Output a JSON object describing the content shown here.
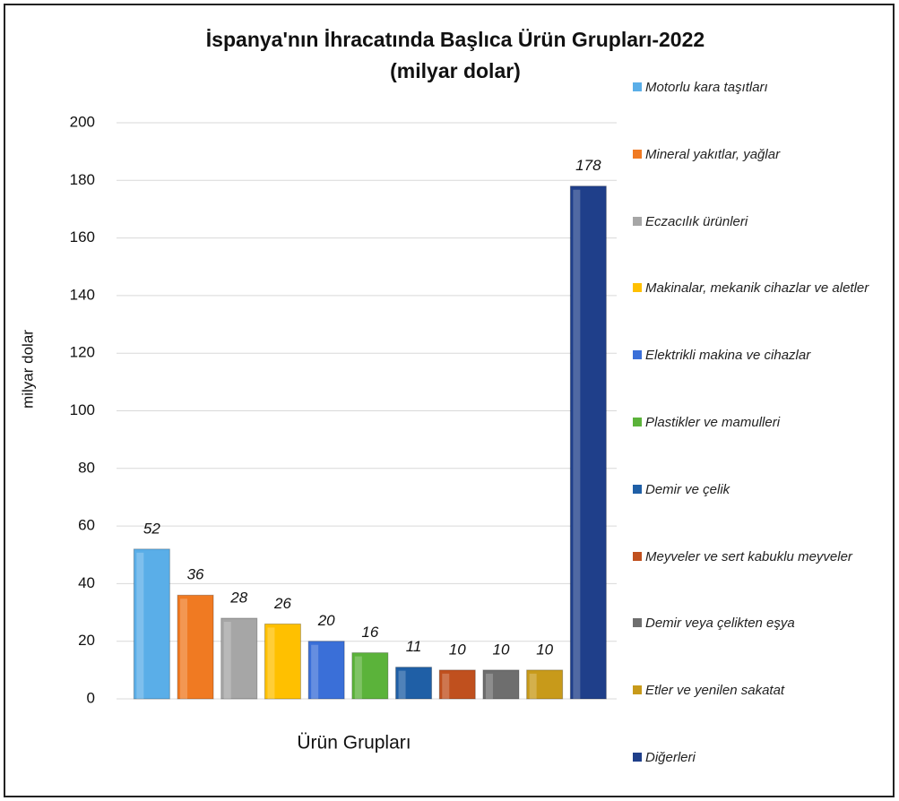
{
  "chart_data": {
    "type": "bar",
    "title": "İspanya'nın İhracatında Başlıca Ürün Grupları-2022",
    "subtitle": "(milyar dolar)",
    "ylabel": "milyar dolar",
    "xlabel": "Ürün Grupları",
    "ylim": [
      0,
      200
    ],
    "yticks": [
      0,
      20,
      40,
      60,
      80,
      100,
      120,
      140,
      160,
      180,
      200
    ],
    "grid": true,
    "legend": "right",
    "series": [
      {
        "name": "Motorlu kara taşıtları",
        "color": "#5aaee8",
        "values": [
          52
        ]
      },
      {
        "name": "Mineral yakıtlar, yağlar",
        "color": "#f07a22",
        "values": [
          36
        ]
      },
      {
        "name": "Eczacılık ürünleri",
        "color": "#a6a6a6",
        "values": [
          28
        ]
      },
      {
        "name": "Makinalar, mekanik cihazlar ve aletler",
        "color": "#ffc000",
        "values": [
          26
        ]
      },
      {
        "name": "Elektrikli makina ve cihazlar",
        "color": "#3a6fd8",
        "values": [
          20
        ]
      },
      {
        "name": "Plastikler ve mamulleri",
        "color": "#5bb33a",
        "values": [
          16
        ]
      },
      {
        "name": "Demir ve çelik",
        "color": "#1f5fa6",
        "values": [
          11
        ]
      },
      {
        "name": "Meyveler ve sert kabuklu meyveler",
        "color": "#c0501e",
        "values": [
          10
        ]
      },
      {
        "name": "Demir veya çelikten eşya",
        "color": "#6e6e6e",
        "values": [
          10
        ]
      },
      {
        "name": "Etler ve yenilen sakatat",
        "color": "#c89a1a",
        "values": [
          10
        ]
      },
      {
        "name": "Diğerleri",
        "color": "#1f3f8a",
        "values": [
          178
        ]
      }
    ]
  }
}
